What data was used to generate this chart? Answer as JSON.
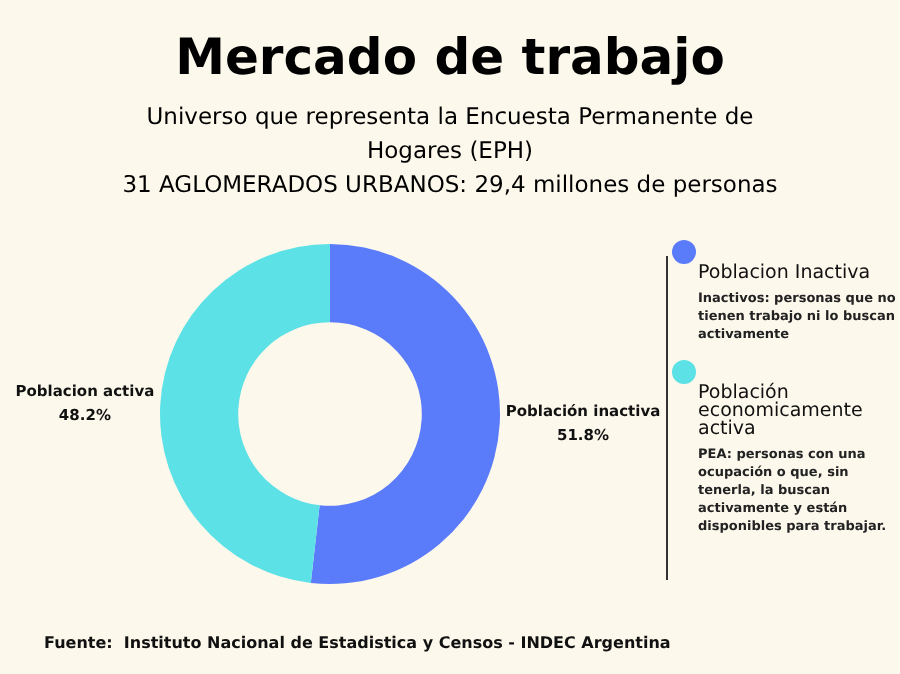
{
  "chart_data": {
    "type": "donut",
    "title": "Mercado de trabajo",
    "subtitle": "Universo que representa la Encuesta Permanente de Hogares (EPH)\n31 AGLOMERADOS URBANOS: 29,4 millones de personas",
    "categories": [
      "Población inactiva",
      "Poblacion activa"
    ],
    "values": [
      51.8,
      48.2
    ],
    "value_labels": [
      "51.8%",
      "48.2%"
    ],
    "colors": [
      "#5b7cfa",
      "#5ce1e6"
    ],
    "annotations": [
      "Poblacion Inactiva",
      "Inactivos: personas que no tienen trabajo ni lo buscan activamente",
      "Población economicamente activa",
      "PEA: personas con una ocupación o que, sin tenerla, la buscan activamente y están disponibles para trabajar.",
      "Fuente:  Instituto Nacional de Estadistica y Censos - INDEC Argentina"
    ]
  }
}
